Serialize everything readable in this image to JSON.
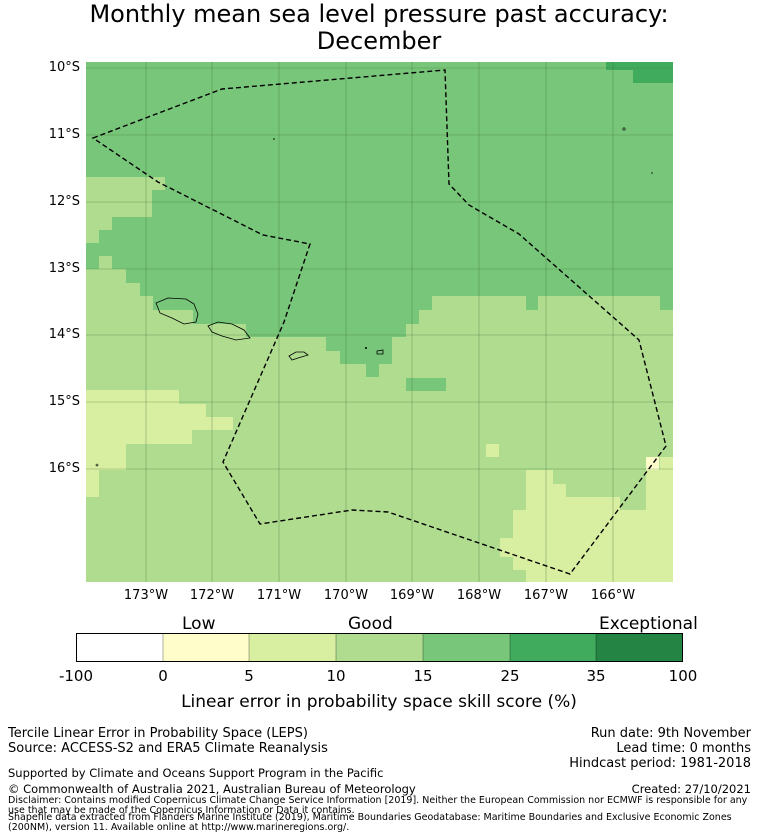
{
  "title": {
    "line1": "Monthly mean sea level pressure past accuracy:",
    "line2": "December"
  },
  "map": {
    "lat_labels": [
      "10°S",
      "11°S",
      "12°S",
      "13°S",
      "14°S",
      "15°S",
      "16°S"
    ],
    "lon_labels": [
      "173°W",
      "172°W",
      "171°W",
      "170°W",
      "169°W",
      "168°W",
      "167°W",
      "166°W"
    ],
    "colors": {
      "low": "#fffecb",
      "low2": "#d8eea0",
      "good": "#afdc8f",
      "good2": "#78c679",
      "high": "#41ab5d",
      "exceptional": "#238443"
    }
  },
  "colorbar": {
    "categories": [
      "Low",
      "Good",
      "Exceptional"
    ],
    "ticks": [
      "-100",
      "0",
      "5",
      "10",
      "15",
      "25",
      "35",
      "100"
    ],
    "colors": [
      "#ffffff",
      "#fffecb",
      "#d8eea0",
      "#afdc8f",
      "#78c679",
      "#41ab5d",
      "#238443"
    ],
    "label": "Linear error in probability space skill score (%)"
  },
  "footer": {
    "method": "Tercile Linear Error in Probability Space (LEPS)",
    "source": "Source: ACCESS-S2 and ERA5 Climate Reanalysis",
    "run_date": "Run date: 9th November",
    "lead_time": "Lead time: 0 months",
    "hindcast": "Hindcast period: 1981-2018",
    "support": "Supported by Climate and Oceans Support Program in the Pacific",
    "copyright": "© Commonwealth of Australia 2021, Australian Bureau of Meteorology",
    "created": "Created: 27/10/2021",
    "disclaimer": "Disclaimer: Contains modified Copernicus Climate Change Service Information [2019]. Neither the European Commission nor ECMWF is responsible for any use that may be made of the Copernicus Information or Data it contains.",
    "shapefile": "Shapefile data extracted from Flanders Marine Institute (2019), Maritime Boundaries Geodatabase: Maritime Boundaries and Exclusive Economic Zones (200NM), version 11. Available online at http://www.marineregions.org/."
  }
}
